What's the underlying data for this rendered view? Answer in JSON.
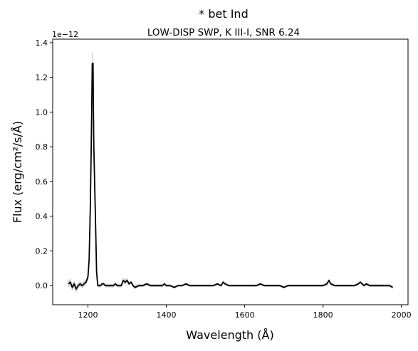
{
  "chart_data": {
    "type": "line",
    "title": "* bet Ind",
    "subtitle": "LOW-DISP SWP, K III-I, SNR 6.24",
    "xlabel": "Wavelength (Å)",
    "ylabel": "Flux (erg/cm²/s/Å)",
    "offset_text": "1e−12",
    "y_scale_multiplier": 1e-12,
    "xlim": [
      1110,
      2017
    ],
    "ylim": [
      -0.11,
      1.42
    ],
    "x_ticks": [
      1200,
      1400,
      1600,
      1800,
      2000
    ],
    "y_ticks": [
      0.0,
      0.2,
      0.4,
      0.6,
      0.8,
      1.0,
      1.2,
      1.4
    ],
    "x_tick_labels": [
      "1200",
      "1400",
      "1600",
      "1800",
      "2000"
    ],
    "y_tick_labels": [
      "0.0",
      "0.2",
      "0.4",
      "0.6",
      "0.8",
      "1.0",
      "1.2",
      "1.4"
    ],
    "colors": {
      "line": "#000000",
      "error_band": "#999999"
    },
    "series": [
      {
        "x": [
          1150,
          1155,
          1160,
          1165,
          1170,
          1175,
          1180,
          1185,
          1190,
          1195,
          1200,
          1203,
          1206,
          1209,
          1211,
          1213,
          1214,
          1215,
          1216,
          1218,
          1220,
          1222,
          1225,
          1228,
          1232,
          1236,
          1240,
          1245,
          1250,
          1255,
          1260,
          1265,
          1270,
          1275,
          1280,
          1285,
          1290,
          1295,
          1300,
          1305,
          1310,
          1315,
          1320,
          1330,
          1340,
          1350,
          1360,
          1370,
          1380,
          1390,
          1395,
          1400,
          1410,
          1420,
          1430,
          1440,
          1450,
          1460,
          1470,
          1480,
          1490,
          1500,
          1510,
          1520,
          1530,
          1540,
          1545,
          1550,
          1560,
          1570,
          1580,
          1590,
          1600,
          1610,
          1620,
          1630,
          1640,
          1650,
          1660,
          1670,
          1680,
          1690,
          1700,
          1710,
          1720,
          1730,
          1740,
          1750,
          1760,
          1770,
          1780,
          1790,
          1800,
          1810,
          1815,
          1820,
          1830,
          1840,
          1850,
          1860,
          1870,
          1880,
          1890,
          1895,
          1900,
          1905,
          1910,
          1920,
          1930,
          1940,
          1950,
          1960,
          1970,
          1978
        ],
        "y": [
          0.01,
          0.02,
          -0.01,
          0.01,
          -0.02,
          0.0,
          0.01,
          0.0,
          0.01,
          0.02,
          0.05,
          0.15,
          0.45,
          0.9,
          1.28,
          1.28,
          1.0,
          0.8,
          0.7,
          0.5,
          0.3,
          0.08,
          0.0,
          0.0,
          0.0,
          0.01,
          0.01,
          0.0,
          0.0,
          0.0,
          0.0,
          0.0,
          0.01,
          0.0,
          0.0,
          0.0,
          0.03,
          0.02,
          0.03,
          0.01,
          0.02,
          0.0,
          -0.01,
          0.0,
          0.0,
          0.01,
          0.0,
          0.0,
          0.0,
          0.0,
          0.01,
          0.0,
          0.0,
          -0.01,
          0.0,
          0.0,
          0.01,
          0.0,
          0.0,
          0.0,
          0.0,
          0.0,
          0.0,
          0.0,
          0.01,
          0.0,
          0.02,
          0.01,
          0.0,
          0.0,
          0.0,
          0.0,
          0.0,
          0.0,
          0.0,
          0.0,
          0.01,
          0.0,
          0.0,
          0.0,
          0.0,
          0.0,
          -0.01,
          0.0,
          0.0,
          0.0,
          0.0,
          0.0,
          0.0,
          0.0,
          0.0,
          0.0,
          0.0,
          0.01,
          0.03,
          0.01,
          0.0,
          0.0,
          0.0,
          0.0,
          0.0,
          0.0,
          0.01,
          0.02,
          0.01,
          0.0,
          0.01,
          0.0,
          0.0,
          0.0,
          0.0,
          0.0,
          0.0,
          -0.01
        ],
        "error": [
          0.02,
          0.02,
          0.02,
          0.02,
          0.02,
          0.015,
          0.015,
          0.015,
          0.015,
          0.015,
          0.02,
          0.03,
          0.04,
          0.05,
          0.06,
          0.06,
          0.05,
          0.04,
          0.03,
          0.03,
          0.02,
          0.015,
          0.01,
          0.01,
          0.01,
          0.01,
          0.01,
          0.01,
          0.01,
          0.01,
          0.01,
          0.01,
          0.01,
          0.01,
          0.01,
          0.01,
          0.015,
          0.015,
          0.015,
          0.01,
          0.01,
          0.01,
          0.01,
          0.008,
          0.008,
          0.008,
          0.008,
          0.008,
          0.008,
          0.008,
          0.008,
          0.008,
          0.007,
          0.007,
          0.007,
          0.007,
          0.007,
          0.007,
          0.007,
          0.007,
          0.007,
          0.007,
          0.007,
          0.007,
          0.007,
          0.007,
          0.007,
          0.007,
          0.007,
          0.007,
          0.007,
          0.007,
          0.007,
          0.007,
          0.007,
          0.007,
          0.007,
          0.007,
          0.007,
          0.007,
          0.007,
          0.007,
          0.007,
          0.007,
          0.007,
          0.007,
          0.007,
          0.007,
          0.007,
          0.007,
          0.007,
          0.007,
          0.007,
          0.007,
          0.01,
          0.008,
          0.007,
          0.007,
          0.007,
          0.007,
          0.007,
          0.007,
          0.008,
          0.008,
          0.008,
          0.008,
          0.008,
          0.008,
          0.008,
          0.008,
          0.008,
          0.008,
          0.008,
          0.008
        ]
      }
    ]
  }
}
